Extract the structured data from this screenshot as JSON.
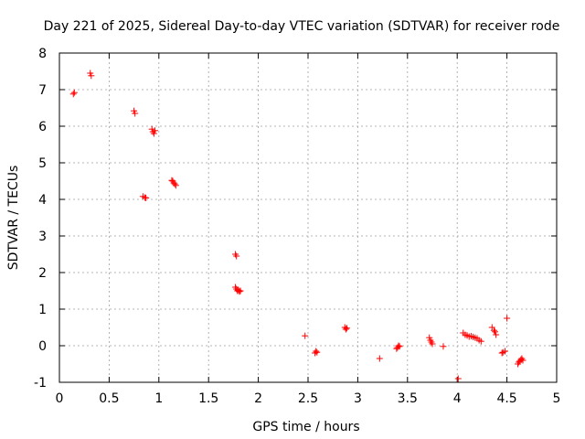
{
  "chart_data": {
    "type": "scatter",
    "title": "Day 221 of 2025, Sidereal Day-to-day VTEC variation (SDTVAR) for receiver rode",
    "xlabel": "GPS time / hours",
    "ylabel": "SDTVAR / TECUs",
    "xlim": [
      0,
      5
    ],
    "ylim": [
      -1,
      8
    ],
    "xticks": [
      0,
      0.5,
      1,
      1.5,
      2,
      2.5,
      3,
      3.5,
      4,
      4.5,
      5
    ],
    "xtick_labels": [
      "0",
      "0.5",
      "1",
      "1.5",
      "2",
      "2.5",
      "3",
      "3.5",
      "4",
      "4.5",
      "5"
    ],
    "yticks": [
      -1,
      0,
      1,
      2,
      3,
      4,
      5,
      6,
      7,
      8
    ],
    "ytick_labels": [
      "-1",
      "0",
      "1",
      "2",
      "3",
      "4",
      "5",
      "6",
      "7",
      "8"
    ],
    "grid": true,
    "marker_color": "#ff0000",
    "marker": "plus",
    "series": [
      {
        "name": "SDTVAR",
        "x": [
          0.14,
          0.15,
          0.31,
          0.32,
          0.75,
          0.76,
          0.84,
          0.86,
          0.87,
          0.93,
          0.94,
          0.95,
          0.96,
          1.13,
          1.14,
          1.15,
          1.16,
          1.17,
          1.77,
          1.78,
          1.77,
          1.78,
          1.79,
          1.8,
          1.81,
          1.82,
          2.47,
          2.57,
          2.58,
          2.59,
          2.87,
          2.88,
          2.89,
          3.22,
          3.39,
          3.4,
          3.41,
          3.42,
          3.72,
          3.73,
          3.74,
          3.75,
          3.86,
          4.01,
          4.06,
          4.08,
          4.1,
          4.12,
          4.14,
          4.16,
          4.18,
          4.2,
          4.22,
          4.24,
          4.35,
          4.37,
          4.38,
          4.39,
          4.45,
          4.46,
          4.48,
          4.5,
          4.61,
          4.62,
          4.63,
          4.64,
          4.65,
          4.66
        ],
        "y": [
          6.88,
          6.92,
          7.45,
          7.38,
          6.42,
          6.35,
          4.08,
          4.05,
          4.04,
          5.92,
          5.85,
          5.8,
          5.88,
          4.52,
          4.5,
          4.45,
          4.42,
          4.38,
          2.5,
          2.45,
          1.6,
          1.55,
          1.5,
          1.52,
          1.48,
          1.5,
          0.27,
          -0.2,
          -0.15,
          -0.18,
          0.5,
          0.45,
          0.48,
          -0.35,
          -0.08,
          -0.05,
          0.0,
          -0.02,
          0.22,
          0.15,
          0.1,
          0.05,
          -0.02,
          -0.9,
          0.35,
          0.3,
          0.28,
          0.25,
          0.26,
          0.24,
          0.22,
          0.2,
          0.15,
          0.12,
          0.5,
          0.42,
          0.38,
          0.3,
          -0.2,
          -0.18,
          -0.15,
          0.75,
          -0.5,
          -0.45,
          -0.42,
          -0.38,
          -0.35,
          -0.4
        ]
      }
    ]
  }
}
